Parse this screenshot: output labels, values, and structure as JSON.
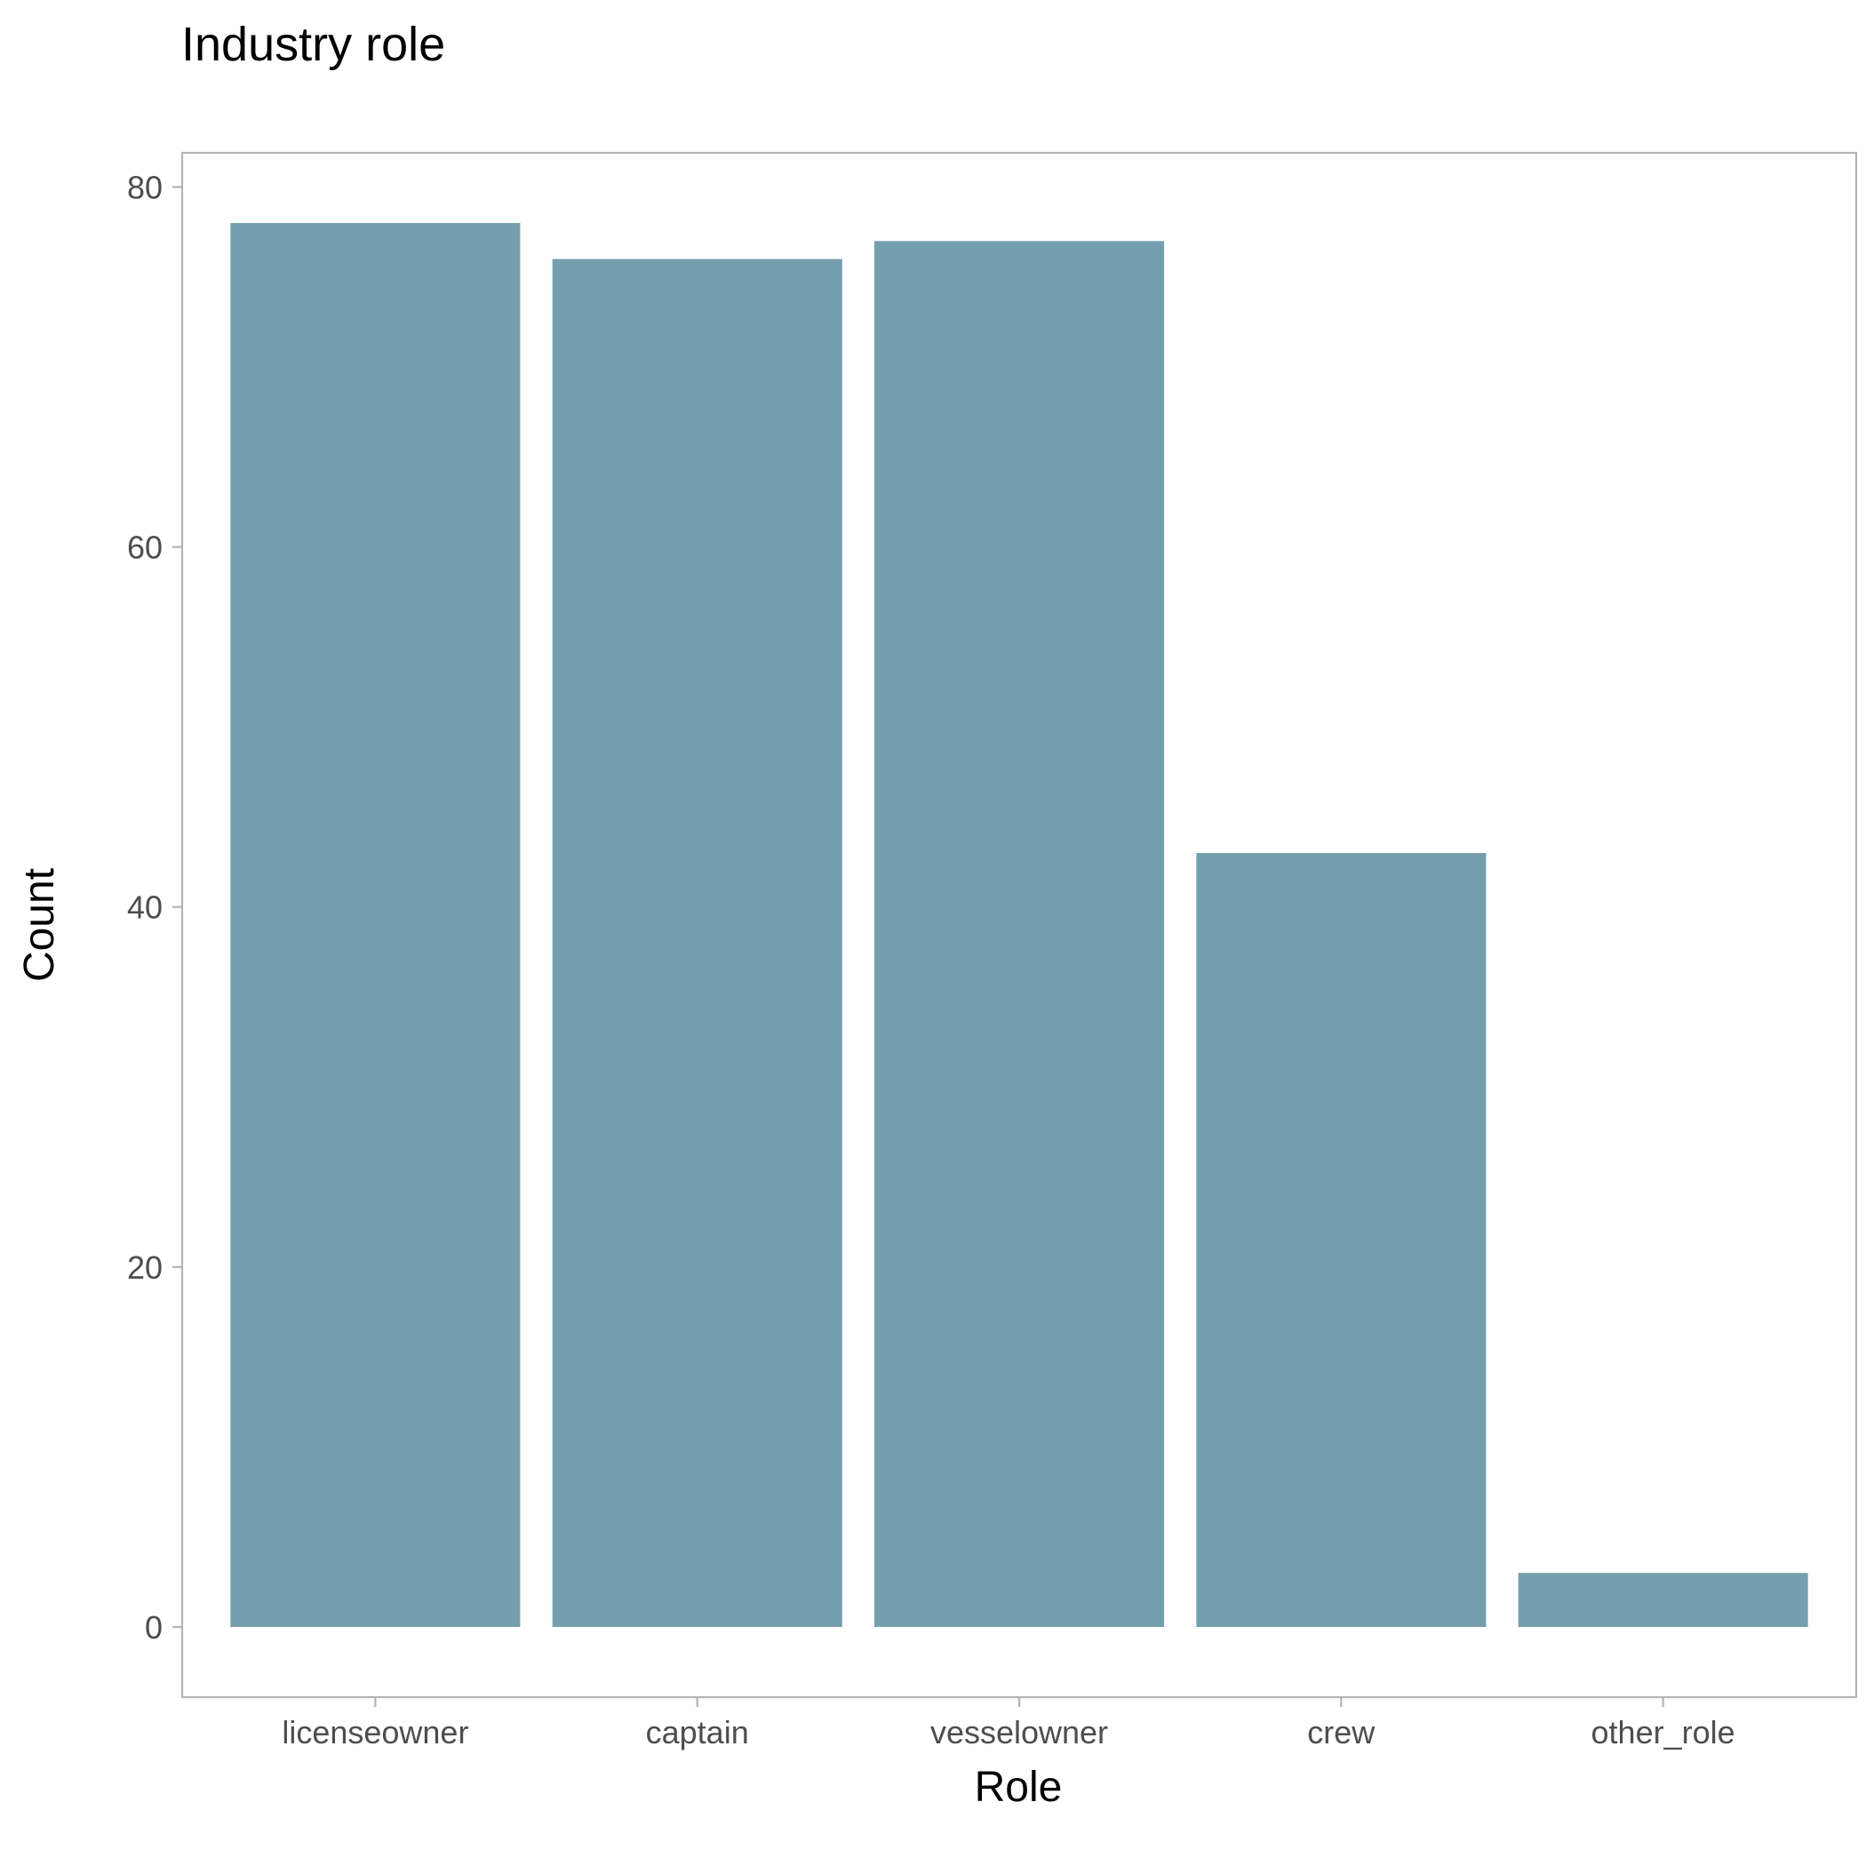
{
  "chart_data": {
    "type": "bar",
    "title": "Industry role",
    "xlabel": "Role",
    "ylabel": "Count",
    "categories": [
      "licenseowner",
      "captain",
      "vesselowner",
      "crew",
      "other_role"
    ],
    "values": [
      78,
      76,
      77,
      43,
      3
    ],
    "ylim": [
      -3.9,
      81.9
    ],
    "yticks": [
      0,
      20,
      40,
      60,
      80
    ],
    "ytick_labels": [
      "0",
      "20",
      "40",
      "60",
      "80"
    ],
    "grid": false,
    "legend": "none",
    "bar_color": "#769fae",
    "panel_border_color": "#b3b3b3",
    "tick_color": "#b3b3b3",
    "tick_label_color": "#4d4d4d",
    "text_color": "#000000"
  }
}
